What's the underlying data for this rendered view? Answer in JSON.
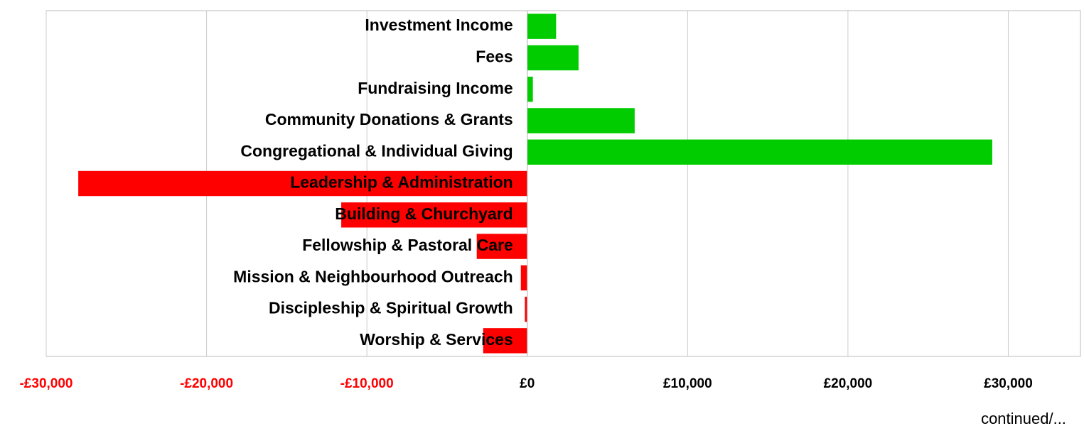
{
  "chart_data": {
    "type": "barh",
    "categories": [
      "Investment Income",
      "Fees",
      "Fundraising Income",
      "Community Donations & Grants",
      "Congregational & Individual Giving",
      "Leadership & Administration",
      "Building & Churchyard",
      "Fellowship & Pastoral Care",
      "Mission & Neighbourhood Outreach",
      "Discipleship & Spiritual Growth",
      "Worship & Services"
    ],
    "values": [
      1800,
      3200,
      350,
      6700,
      29000,
      -28000,
      -11600,
      -3150,
      -400,
      -150,
      -2750
    ],
    "positive_color": "#00cc00",
    "negative_color": "#ff0000",
    "xlim": [
      -30000,
      34500
    ],
    "xticks": [
      {
        "value": -30000,
        "label": "-£30,000"
      },
      {
        "value": -20000,
        "label": "-£20,000"
      },
      {
        "value": -10000,
        "label": "-£10,000"
      },
      {
        "value": 0,
        "label": "£0"
      },
      {
        "value": 10000,
        "label": "£10,000"
      },
      {
        "value": 20000,
        "label": "£20,000"
      },
      {
        "value": 30000,
        "label": "£30,000"
      }
    ],
    "grid": true,
    "annotation": "continued/..."
  }
}
